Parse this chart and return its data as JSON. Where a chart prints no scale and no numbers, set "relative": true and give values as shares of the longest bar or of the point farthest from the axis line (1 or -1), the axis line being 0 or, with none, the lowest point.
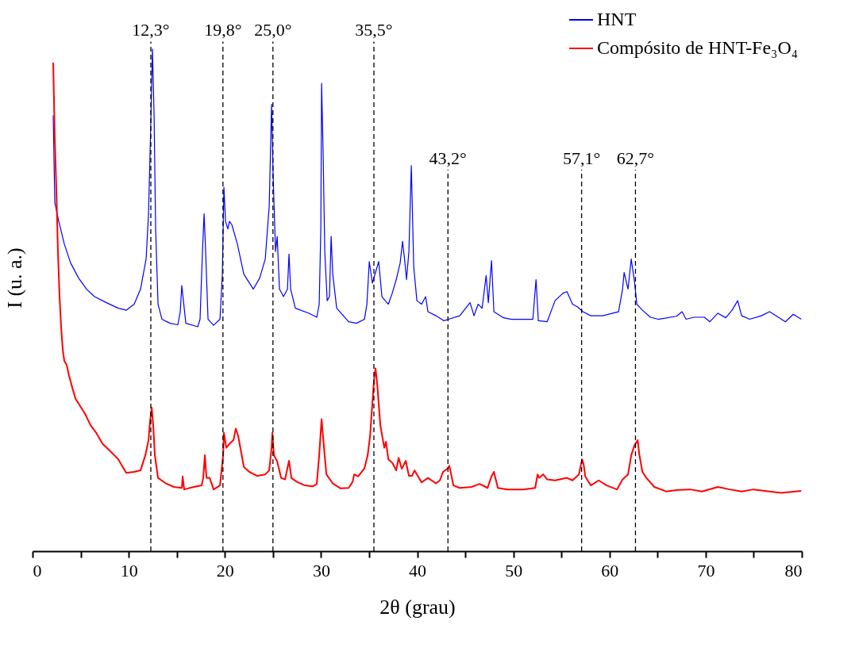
{
  "chart_data": {
    "type": "line",
    "relative": true,
    "xlabel": "2θ (grau)",
    "ylabel": "I (u. a.)",
    "xlim": [
      0,
      80
    ],
    "xticks": [
      0,
      {
        "value": 5,
        "label": null
      },
      10,
      {
        "value": 15,
        "label": null
      },
      20,
      {
        "value": 25,
        "label": null
      },
      30,
      {
        "value": 35,
        "label": null
      },
      40,
      {
        "value": 45,
        "label": null
      },
      50,
      {
        "value": 55,
        "label": null
      },
      60,
      {
        "value": 65,
        "label": null
      },
      70,
      {
        "value": 75,
        "label": null
      },
      80
    ],
    "legend": "top right",
    "grid": false,
    "marker": "none",
    "line_style": "solid",
    "ref_lines": [
      {
        "axis": "x",
        "value": 12.3,
        "label": "12,3°",
        "color": "#000000",
        "line_style": "dashed"
      },
      {
        "axis": "x",
        "value": 19.8,
        "label": "19,8°",
        "color": "#000000",
        "line_style": "dashed"
      },
      {
        "axis": "x",
        "value": 25.0,
        "label": "25,0°",
        "color": "#000000",
        "line_style": "dashed"
      },
      {
        "axis": "x",
        "value": 35.5,
        "label": "35,5°",
        "color": "#000000",
        "line_style": "dashed"
      },
      {
        "axis": "x",
        "value": 43.2,
        "label": "43,2°",
        "color": "#000000",
        "line_style": "dashed"
      },
      {
        "axis": "x",
        "value": 57.1,
        "label": "57,1°",
        "color": "#000000",
        "line_style": "dashed"
      },
      {
        "axis": "x",
        "value": 62.7,
        "label": "62,7°",
        "color": "#000000",
        "line_style": "dashed"
      }
    ],
    "series": [
      {
        "name": "HNT",
        "color": "#0000ff",
        "x": [
          2.15,
          2.31,
          2.73,
          3.3,
          3.96,
          4.79,
          5.62,
          6.44,
          7.68,
          8.92,
          9.74,
          10.57,
          11.23,
          11.81,
          12.06,
          12.3,
          12.47,
          12.64,
          12.8,
          13.05,
          13.46,
          14.29,
          15.11,
          15.36,
          15.52,
          15.69,
          15.94,
          17.18,
          17.42,
          17.67,
          17.84,
          18.0,
          18.25,
          18.83,
          19.49,
          19.74,
          19.9,
          20.07,
          20.31,
          20.48,
          20.73,
          21.3,
          21.97,
          22.96,
          23.62,
          24.2,
          24.61,
          24.86,
          25.02,
          25.27,
          25.44,
          25.68,
          26.1,
          26.51,
          26.67,
          26.84,
          27.33,
          28.74,
          29.56,
          29.81,
          29.98,
          30.06,
          30.22,
          30.39,
          30.64,
          30.88,
          31.05,
          31.22,
          31.63,
          32.87,
          33.69,
          34.52,
          34.77,
          35.02,
          35.34,
          36.0,
          36.33,
          37.0,
          37.41,
          37.82,
          38.23,
          38.48,
          38.73,
          38.89,
          39.14,
          39.39,
          39.64,
          39.97,
          40.46,
          40.88,
          41.12,
          41.95,
          42.78,
          43.27,
          44.43,
          45.5,
          45.91,
          46.34,
          46.75,
          47.17,
          47.4,
          47.73,
          47.98,
          48.97,
          49.8,
          51.03,
          52.03,
          52.36,
          52.6,
          53.51,
          54.34,
          55.17,
          55.58,
          56.15,
          56.65,
          57.23,
          58.05,
          59.29,
          60.94,
          61.36,
          61.52,
          61.93,
          62.26,
          62.6,
          62.84,
          63.42,
          64.25,
          65.07,
          66.97,
          67.55,
          67.96,
          68.79,
          69.86,
          70.44,
          71.27,
          72.09,
          72.75,
          73.33,
          73.74,
          74.57,
          75.81,
          76.64,
          77.3,
          78.29,
          79.11,
          79.94
        ],
        "values": [
          0.868,
          0.695,
          0.657,
          0.612,
          0.574,
          0.544,
          0.522,
          0.507,
          0.495,
          0.484,
          0.48,
          0.492,
          0.522,
          0.582,
          0.672,
          0.853,
          1.0,
          0.868,
          0.642,
          0.492,
          0.462,
          0.454,
          0.451,
          0.477,
          0.529,
          0.499,
          0.454,
          0.447,
          0.462,
          0.597,
          0.672,
          0.597,
          0.462,
          0.45,
          0.462,
          0.552,
          0.725,
          0.657,
          0.642,
          0.657,
          0.65,
          0.612,
          0.552,
          0.522,
          0.544,
          0.582,
          0.687,
          0.89,
          0.747,
          0.597,
          0.627,
          0.522,
          0.507,
          0.522,
          0.592,
          0.522,
          0.484,
          0.474,
          0.466,
          0.492,
          0.642,
          0.932,
          0.792,
          0.597,
          0.499,
          0.507,
          0.627,
          0.552,
          0.484,
          0.457,
          0.454,
          0.462,
          0.492,
          0.577,
          0.534,
          0.577,
          0.507,
          0.492,
          0.514,
          0.541,
          0.574,
          0.617,
          0.574,
          0.541,
          0.597,
          0.768,
          0.567,
          0.499,
          0.492,
          0.507,
          0.477,
          0.469,
          0.459,
          0.462,
          0.469,
          0.495,
          0.469,
          0.492,
          0.484,
          0.549,
          0.495,
          0.579,
          0.477,
          0.465,
          0.462,
          0.462,
          0.462,
          0.541,
          0.459,
          0.457,
          0.499,
          0.514,
          0.517,
          0.492,
          0.487,
          0.477,
          0.469,
          0.469,
          0.477,
          0.522,
          0.555,
          0.522,
          0.582,
          0.537,
          0.492,
          0.48,
          0.466,
          0.462,
          0.468,
          0.477,
          0.462,
          0.466,
          0.466,
          0.457,
          0.474,
          0.465,
          0.48,
          0.499,
          0.469,
          0.462,
          0.469,
          0.477,
          0.469,
          0.457,
          0.472,
          0.462
        ]
      },
      {
        "name": "Compósito de HNT-Fe₃O₄",
        "color": "#ff0000",
        "x": [
          2.15,
          2.31,
          2.48,
          2.64,
          2.81,
          2.97,
          3.14,
          3.3,
          3.55,
          3.8,
          4.13,
          4.46,
          4.95,
          5.45,
          6.03,
          6.61,
          7.27,
          8.09,
          8.92,
          9.74,
          10.57,
          11.23,
          11.73,
          12.06,
          12.22,
          12.39,
          12.55,
          12.72,
          13.05,
          13.87,
          14.7,
          15.53,
          15.61,
          15.77,
          16.76,
          17.59,
          17.75,
          17.92,
          18.09,
          18.42,
          18.83,
          19.49,
          19.82,
          19.9,
          20.15,
          20.48,
          20.89,
          21.14,
          21.39,
          21.64,
          21.97,
          22.54,
          23.37,
          24.2,
          24.61,
          24.86,
          24.94,
          25.1,
          25.44,
          25.85,
          26.26,
          26.67,
          26.92,
          27.5,
          28.33,
          29.15,
          29.56,
          29.81,
          30.06,
          30.31,
          30.56,
          31.22,
          32.04,
          32.87,
          33.28,
          33.45,
          33.86,
          34.52,
          34.85,
          35.1,
          35.51,
          35.67,
          35.84,
          36.17,
          36.58,
          36.75,
          37.0,
          37.41,
          37.82,
          38.07,
          38.4,
          38.81,
          39.14,
          39.47,
          39.72,
          39.97,
          40.46,
          41.12,
          41.95,
          42.36,
          42.69,
          43.19,
          43.35,
          43.77,
          44.43,
          45.67,
          46.49,
          47.32,
          47.73,
          47.98,
          48.39,
          49.38,
          51.03,
          52.27,
          52.52,
          52.69,
          53.1,
          53.51,
          54.34,
          55.58,
          56.15,
          56.82,
          57.15,
          57.31,
          57.48,
          58.05,
          58.88,
          59.71,
          60.78,
          61.36,
          61.93,
          62.26,
          62.6,
          62.93,
          63.09,
          63.42,
          63.84,
          64.66,
          65.9,
          67.14,
          68.38,
          69.62,
          71.27,
          72.51,
          73.74,
          74.98,
          76.64,
          77.87,
          79.94
        ],
        "values": [
          0.973,
          0.823,
          0.717,
          0.597,
          0.507,
          0.447,
          0.402,
          0.379,
          0.371,
          0.349,
          0.326,
          0.304,
          0.289,
          0.274,
          0.251,
          0.236,
          0.214,
          0.199,
          0.183,
          0.156,
          0.158,
          0.161,
          0.191,
          0.221,
          0.259,
          0.286,
          0.251,
          0.191,
          0.146,
          0.135,
          0.128,
          0.126,
          0.149,
          0.123,
          0.128,
          0.131,
          0.146,
          0.191,
          0.146,
          0.146,
          0.123,
          0.131,
          0.191,
          0.236,
          0.206,
          0.214,
          0.221,
          0.244,
          0.229,
          0.203,
          0.168,
          0.158,
          0.15,
          0.153,
          0.161,
          0.206,
          0.236,
          0.191,
          0.179,
          0.146,
          0.143,
          0.18,
          0.146,
          0.138,
          0.131,
          0.129,
          0.134,
          0.191,
          0.263,
          0.206,
          0.153,
          0.135,
          0.125,
          0.126,
          0.138,
          0.153,
          0.149,
          0.165,
          0.191,
          0.229,
          0.341,
          0.364,
          0.334,
          0.251,
          0.206,
          0.218,
          0.183,
          0.176,
          0.161,
          0.186,
          0.164,
          0.18,
          0.15,
          0.15,
          0.161,
          0.153,
          0.137,
          0.146,
          0.135,
          0.141,
          0.158,
          0.165,
          0.17,
          0.131,
          0.126,
          0.128,
          0.134,
          0.126,
          0.149,
          0.158,
          0.126,
          0.123,
          0.123,
          0.126,
          0.153,
          0.146,
          0.153,
          0.143,
          0.141,
          0.146,
          0.141,
          0.153,
          0.183,
          0.173,
          0.149,
          0.131,
          0.141,
          0.131,
          0.123,
          0.143,
          0.153,
          0.191,
          0.211,
          0.221,
          0.194,
          0.158,
          0.146,
          0.128,
          0.119,
          0.122,
          0.123,
          0.119,
          0.128,
          0.123,
          0.119,
          0.123,
          0.119,
          0.116,
          0.12
        ]
      }
    ]
  }
}
